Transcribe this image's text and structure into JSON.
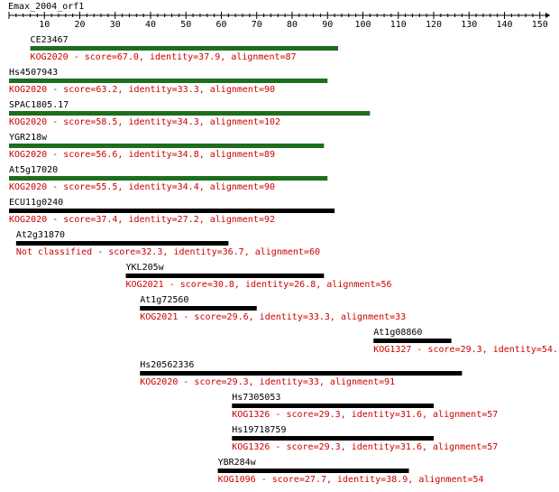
{
  "query": {
    "name": "Emax_2004_orf1"
  },
  "axis": {
    "min": 0,
    "max": 153,
    "major_step": 10,
    "minor_step": 2,
    "labels": [
      "10",
      "20",
      "30",
      "40",
      "50",
      "60",
      "70",
      "80",
      "90",
      "100",
      "110",
      "120",
      "130",
      "140",
      "150"
    ],
    "label_values": [
      10,
      20,
      30,
      40,
      50,
      60,
      70,
      80,
      90,
      100,
      110,
      120,
      130,
      140,
      150
    ]
  },
  "colors": {
    "classified_bar": "#1d6e1d",
    "other_bar": "#000000",
    "desc_text": "#cc0000",
    "axis": "#000000"
  },
  "hits": [
    {
      "name": "CE23467",
      "desc": "KOG2020 - score=67.0, identity=37.9, alignment=87",
      "start": 6,
      "end": 93,
      "bar": "green"
    },
    {
      "name": "Hs4507943",
      "desc": "KOG2020 - score=63.2, identity=33.3, alignment=90",
      "start": 0,
      "end": 90,
      "bar": "green"
    },
    {
      "name": "SPAC1805.17",
      "desc": "KOG2020 - score=58.5, identity=34.3, alignment=102",
      "start": 0,
      "end": 102,
      "bar": "green"
    },
    {
      "name": "YGR218w",
      "desc": "KOG2020 - score=56.6, identity=34.8, alignment=89",
      "start": 0,
      "end": 89,
      "bar": "green"
    },
    {
      "name": "At5g17020",
      "desc": "KOG2020 - score=55.5, identity=34.4, alignment=90",
      "start": 0,
      "end": 90,
      "bar": "green"
    },
    {
      "name": "ECU11g0240",
      "desc": "KOG2020 - score=37.4, identity=27.2, alignment=92",
      "start": 0,
      "end": 92,
      "bar": "black"
    },
    {
      "name": "At2g31870",
      "desc": "Not classified - score=32.3, identity=36.7, alignment=60",
      "start": 2,
      "end": 62,
      "bar": "black"
    },
    {
      "name": "YKL205w",
      "desc": "KOG2021 - score=30.8, identity=26.8, alignment=56",
      "start": 33,
      "end": 89,
      "bar": "black"
    },
    {
      "name": "At1g72560",
      "desc": "KOG2021 - score=29.6, identity=33.3, alignment=33",
      "start": 37,
      "end": 70,
      "bar": "black"
    },
    {
      "name": "At1g08860",
      "desc": "KOG1327 - score=29.3, identity=54.",
      "start": 103,
      "end": 125,
      "bar": "black"
    },
    {
      "name": "Hs20562336",
      "desc": "KOG2020 - score=29.3, identity=33, alignment=91",
      "start": 37,
      "end": 128,
      "bar": "black"
    },
    {
      "name": "Hs7305053",
      "desc": "KOG1326 - score=29.3, identity=31.6, alignment=57",
      "start": 63,
      "end": 120,
      "bar": "black"
    },
    {
      "name": "Hs19718759",
      "desc": "KOG1326 - score=29.3, identity=31.6, alignment=57",
      "start": 63,
      "end": 120,
      "bar": "black"
    },
    {
      "name": "YBR284w",
      "desc": "KOG1096 - score=27.7, identity=38.9, alignment=54",
      "start": 59,
      "end": 113,
      "bar": "black"
    }
  ]
}
